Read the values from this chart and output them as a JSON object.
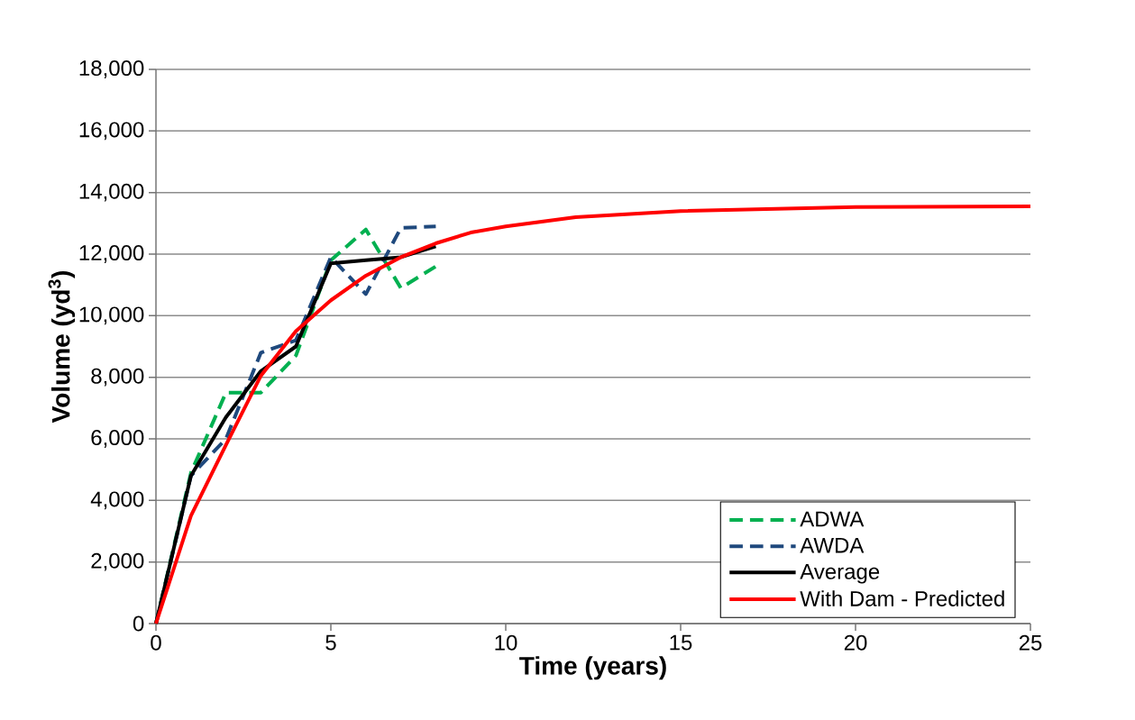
{
  "chart_data": {
    "type": "line",
    "xlabel": "Time (years)",
    "ylabel": "Volume (yd$^{3}$)",
    "xlim": [
      0,
      25
    ],
    "xticks": [
      0,
      5,
      10,
      15,
      20,
      25
    ],
    "ylim": [
      0,
      18000
    ],
    "yticks": [
      {
        "value": 0,
        "label": "0"
      },
      {
        "value": 2000,
        "label": "2,000"
      },
      {
        "value": 4000,
        "label": "4,000"
      },
      {
        "value": 6000,
        "label": "6,000"
      },
      {
        "value": 8000,
        "label": "8,000"
      },
      {
        "value": 10000,
        "label": "10,000"
      },
      {
        "value": 12000,
        "label": "12,000"
      },
      {
        "value": 14000,
        "label": "14,000"
      },
      {
        "value": 16000,
        "label": "16,000"
      },
      {
        "value": 18000,
        "label": "18,000"
      }
    ],
    "grid": "y",
    "legend": "bottom right",
    "series": [
      {
        "name": "ADWA",
        "color": "#00b050",
        "line_style": "dashed",
        "x": [
          0,
          1,
          2,
          3,
          4,
          5,
          6,
          7,
          8
        ],
        "values": [
          0,
          4900,
          7500,
          7500,
          8700,
          11800,
          12800,
          10900,
          11600
        ]
      },
      {
        "name": "AWDA",
        "color": "#1f497d",
        "line_style": "dashed",
        "x": [
          0,
          1,
          2,
          3,
          4,
          5,
          6,
          7,
          8
        ],
        "values": [
          0,
          4800,
          6000,
          8800,
          9200,
          11900,
          10700,
          12850,
          12900
        ]
      },
      {
        "name": "Average",
        "color": "#000000",
        "line_style": "solid",
        "x": [
          0,
          1,
          2,
          3,
          4,
          5,
          6,
          7,
          8
        ],
        "values": [
          0,
          4800,
          6700,
          8200,
          9000,
          11700,
          11800,
          11900,
          12250
        ]
      },
      {
        "name": "With Dam - Predicted",
        "color": "#ff0000",
        "line_style": "solid",
        "x": [
          0,
          1,
          2,
          3,
          4,
          5,
          6,
          7,
          8,
          9,
          10,
          12,
          15,
          20,
          25
        ],
        "values": [
          0,
          3500,
          5800,
          8050,
          9500,
          10500,
          11300,
          11900,
          12350,
          12700,
          12900,
          13200,
          13400,
          13530,
          13550
        ]
      }
    ]
  }
}
